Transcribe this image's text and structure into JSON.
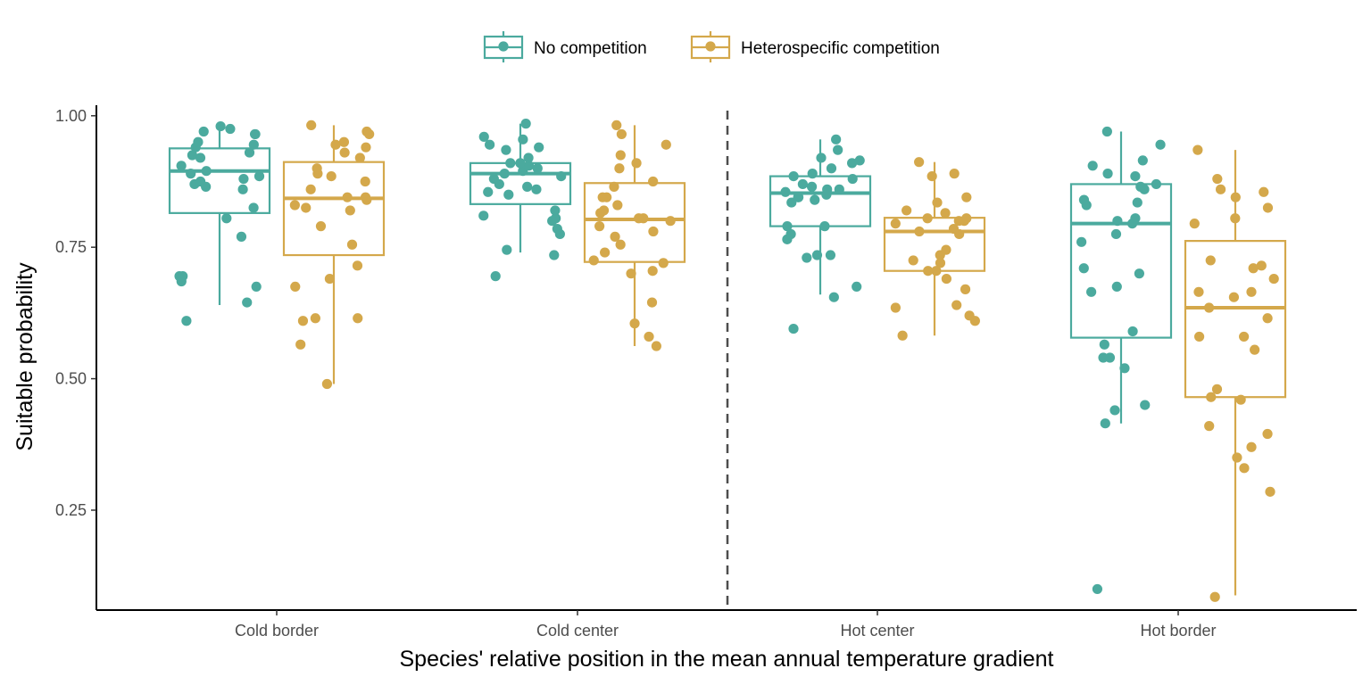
{
  "chart_data": {
    "type": "box",
    "xlabel": "Species' relative position in the mean annual temperature gradient",
    "ylabel": "Suitable probability",
    "categories": [
      "Cold border",
      "Cold center",
      "Hot center",
      "Hot border"
    ],
    "y_ticks": [
      0.25,
      0.5,
      0.75,
      1.0
    ],
    "y_tick_labels": [
      "0.25",
      "0.50",
      "0.75",
      "1.00"
    ],
    "ylim": [
      0.06,
      1.02
    ],
    "grid": false,
    "legend_position": "top",
    "divider_between": [
      "Cold center",
      "Hot center"
    ],
    "series": [
      {
        "name": "No competition",
        "color": "#4BAA9E",
        "boxes": [
          {
            "q1": 0.815,
            "median": 0.895,
            "q3": 0.938,
            "whisker_low": 0.64,
            "whisker_high": 0.98,
            "points": [
              0.61,
              0.645,
              0.675,
              0.685,
              0.695,
              0.695,
              0.77,
              0.805,
              0.825,
              0.86,
              0.865,
              0.87,
              0.875,
              0.88,
              0.885,
              0.89,
              0.895,
              0.905,
              0.92,
              0.925,
              0.93,
              0.94,
              0.945,
              0.95,
              0.965,
              0.965,
              0.97,
              0.975,
              0.98
            ]
          },
          {
            "q1": 0.832,
            "median": 0.89,
            "q3": 0.91,
            "whisker_low": 0.74,
            "whisker_high": 0.985,
            "points": [
              0.695,
              0.735,
              0.745,
              0.775,
              0.785,
              0.805,
              0.81,
              0.82,
              0.8,
              0.85,
              0.855,
              0.86,
              0.865,
              0.87,
              0.88,
              0.885,
              0.89,
              0.895,
              0.9,
              0.905,
              0.91,
              0.91,
              0.92,
              0.935,
              0.94,
              0.945,
              0.955,
              0.96,
              0.985
            ]
          },
          {
            "q1": 0.79,
            "median": 0.853,
            "q3": 0.885,
            "whisker_low": 0.66,
            "whisker_high": 0.955,
            "points": [
              0.595,
              0.655,
              0.675,
              0.73,
              0.735,
              0.735,
              0.765,
              0.775,
              0.79,
              0.79,
              0.835,
              0.84,
              0.845,
              0.845,
              0.85,
              0.855,
              0.86,
              0.86,
              0.865,
              0.87,
              0.88,
              0.885,
              0.89,
              0.9,
              0.91,
              0.915,
              0.92,
              0.935,
              0.955
            ]
          },
          {
            "q1": 0.578,
            "median": 0.795,
            "q3": 0.87,
            "whisker_low": 0.415,
            "whisker_high": 0.97,
            "points": [
              0.1,
              0.415,
              0.44,
              0.45,
              0.52,
              0.54,
              0.54,
              0.565,
              0.59,
              0.665,
              0.675,
              0.7,
              0.71,
              0.76,
              0.775,
              0.795,
              0.8,
              0.805,
              0.83,
              0.835,
              0.84,
              0.86,
              0.865,
              0.87,
              0.885,
              0.89,
              0.905,
              0.915,
              0.945,
              0.97
            ]
          }
        ]
      },
      {
        "name": "Heterospecific competition",
        "color": "#D4A84B",
        "boxes": [
          {
            "q1": 0.735,
            "median": 0.843,
            "q3": 0.912,
            "whisker_low": 0.49,
            "whisker_high": 0.982,
            "points": [
              0.49,
              0.565,
              0.61,
              0.615,
              0.615,
              0.675,
              0.69,
              0.715,
              0.755,
              0.79,
              0.82,
              0.825,
              0.83,
              0.84,
              0.845,
              0.845,
              0.86,
              0.875,
              0.885,
              0.89,
              0.9,
              0.92,
              0.93,
              0.94,
              0.945,
              0.95,
              0.965,
              0.97,
              0.982
            ]
          },
          {
            "q1": 0.722,
            "median": 0.803,
            "q3": 0.872,
            "whisker_low": 0.562,
            "whisker_high": 0.982,
            "points": [
              0.562,
              0.58,
              0.605,
              0.645,
              0.7,
              0.705,
              0.72,
              0.725,
              0.74,
              0.755,
              0.77,
              0.78,
              0.79,
              0.8,
              0.805,
              0.805,
              0.815,
              0.82,
              0.83,
              0.845,
              0.845,
              0.865,
              0.875,
              0.9,
              0.91,
              0.925,
              0.945,
              0.965,
              0.982
            ]
          },
          {
            "q1": 0.705,
            "median": 0.78,
            "q3": 0.806,
            "whisker_low": 0.582,
            "whisker_high": 0.912,
            "points": [
              0.582,
              0.61,
              0.62,
              0.635,
              0.64,
              0.67,
              0.69,
              0.705,
              0.705,
              0.72,
              0.725,
              0.735,
              0.745,
              0.775,
              0.78,
              0.785,
              0.795,
              0.8,
              0.8,
              0.805,
              0.805,
              0.815,
              0.82,
              0.835,
              0.845,
              0.885,
              0.89,
              0.912
            ]
          },
          {
            "q1": 0.465,
            "median": 0.635,
            "q3": 0.762,
            "whisker_low": 0.088,
            "whisker_high": 0.935,
            "points": [
              0.085,
              0.285,
              0.33,
              0.35,
              0.37,
              0.395,
              0.41,
              0.46,
              0.465,
              0.48,
              0.555,
              0.58,
              0.58,
              0.615,
              0.635,
              0.655,
              0.665,
              0.665,
              0.69,
              0.71,
              0.715,
              0.725,
              0.795,
              0.805,
              0.825,
              0.845,
              0.855,
              0.86,
              0.88,
              0.935
            ]
          }
        ]
      }
    ]
  }
}
